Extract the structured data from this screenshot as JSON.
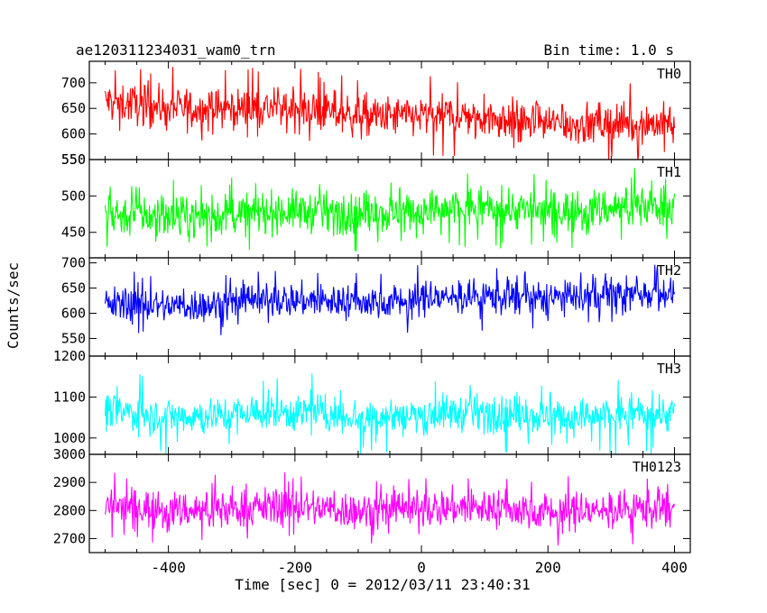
{
  "chart_data": {
    "type": "line",
    "title": "ae120311234031_wam0_trn",
    "bin_label": "Bin time: 1.0 s",
    "xlabel": "Time [sec] 0 = 2012/03/11 23:40:31",
    "ylabel": "Counts/sec",
    "x_range": [
      -500,
      400
    ],
    "xlim": [
      -525,
      425
    ],
    "x_ticks": [
      -400,
      -200,
      0,
      200,
      400
    ],
    "grid": false,
    "panels": [
      {
        "name": "TH0",
        "color": "#ff0000",
        "ylim": [
          550,
          742
        ],
        "y_ticks": [
          550,
          600,
          650,
          700
        ],
        "mean_start": 660,
        "mean_end": 615,
        "noise": 35,
        "spike_max": 80
      },
      {
        "name": "TH1",
        "color": "#00ff00",
        "ylim": [
          415,
          550
        ],
        "y_ticks": [
          450,
          500,
          550
        ],
        "mean_start": 472,
        "mean_end": 485,
        "noise": 25,
        "spike_max": 55
      },
      {
        "name": "TH2",
        "color": "#0000ff",
        "ylim": [
          515,
          710
        ],
        "y_ticks": [
          550,
          600,
          650,
          700
        ],
        "mean_start": 615,
        "mean_end": 638,
        "noise": 30,
        "spike_max": 70
      },
      {
        "name": "TH3",
        "color": "#00ffff",
        "ylim": [
          960,
          1200
        ],
        "y_ticks": [
          1000,
          1100,
          1200
        ],
        "mean_start": 1060,
        "mean_end": 1055,
        "noise": 40,
        "spike_max": 100
      },
      {
        "name": "TH0123",
        "color": "#ff00ff",
        "ylim": [
          2650,
          3000
        ],
        "y_ticks": [
          2700,
          2800,
          2900,
          3000
        ],
        "mean_start": 2810,
        "mean_end": 2800,
        "noise": 60,
        "spike_max": 130
      }
    ]
  }
}
